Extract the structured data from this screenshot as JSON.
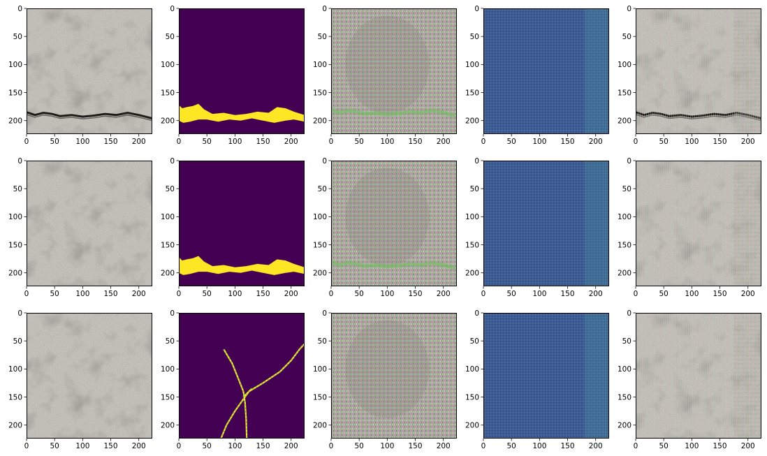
{
  "figure": {
    "rows": 3,
    "cols": 5,
    "xlim": [
      0,
      224
    ],
    "ylim": [
      224,
      0
    ],
    "xticks": [
      0,
      50,
      100,
      150,
      200
    ],
    "yticks": [
      0,
      50,
      100,
      150,
      200
    ]
  },
  "colors": {
    "viridis_dark": "#440154",
    "viridis_yellow": "#fde725",
    "viridis_green": "#35b779",
    "feature_blue": "#3f5d94",
    "concrete": "#b8b4ad",
    "concrete_dark": "#6e6a63"
  },
  "chart_data": [
    {
      "type": "heatmap",
      "row": 0,
      "col": 0,
      "kind": "photo",
      "crack": "horizontal",
      "icon": "concrete-crack-photo"
    },
    {
      "type": "heatmap",
      "row": 0,
      "col": 1,
      "kind": "mask",
      "crack": "horizontal",
      "icon": "crack-mask-viridis"
    },
    {
      "type": "heatmap",
      "row": 0,
      "col": 2,
      "kind": "noisy",
      "crack": "horizontal",
      "icon": "reconstruction-noise"
    },
    {
      "type": "heatmap",
      "row": 0,
      "col": 3,
      "kind": "feature",
      "icon": "feature-map-blue"
    },
    {
      "type": "heatmap",
      "row": 0,
      "col": 4,
      "kind": "overlay",
      "crack": "horizontal",
      "icon": "overlay-photo"
    },
    {
      "type": "heatmap",
      "row": 1,
      "col": 0,
      "kind": "photo",
      "crack": "none",
      "icon": "concrete-photo"
    },
    {
      "type": "heatmap",
      "row": 1,
      "col": 1,
      "kind": "mask",
      "crack": "horizontal",
      "icon": "crack-mask-viridis"
    },
    {
      "type": "heatmap",
      "row": 1,
      "col": 2,
      "kind": "noisy",
      "crack": "horizontal",
      "icon": "reconstruction-noise"
    },
    {
      "type": "heatmap",
      "row": 1,
      "col": 3,
      "kind": "feature",
      "icon": "feature-map-blue"
    },
    {
      "type": "heatmap",
      "row": 1,
      "col": 4,
      "kind": "overlay",
      "crack": "none",
      "icon": "overlay-photo"
    },
    {
      "type": "heatmap",
      "row": 2,
      "col": 0,
      "kind": "photo",
      "crack": "none",
      "icon": "concrete-photo"
    },
    {
      "type": "heatmap",
      "row": 2,
      "col": 1,
      "kind": "mask",
      "crack": "branching",
      "icon": "crack-mask-viridis"
    },
    {
      "type": "heatmap",
      "row": 2,
      "col": 2,
      "kind": "noisy",
      "crack": "none",
      "icon": "reconstruction-noise"
    },
    {
      "type": "heatmap",
      "row": 2,
      "col": 3,
      "kind": "feature",
      "icon": "feature-map-blue"
    },
    {
      "type": "heatmap",
      "row": 2,
      "col": 4,
      "kind": "overlay",
      "crack": "none",
      "icon": "overlay-photo"
    }
  ]
}
